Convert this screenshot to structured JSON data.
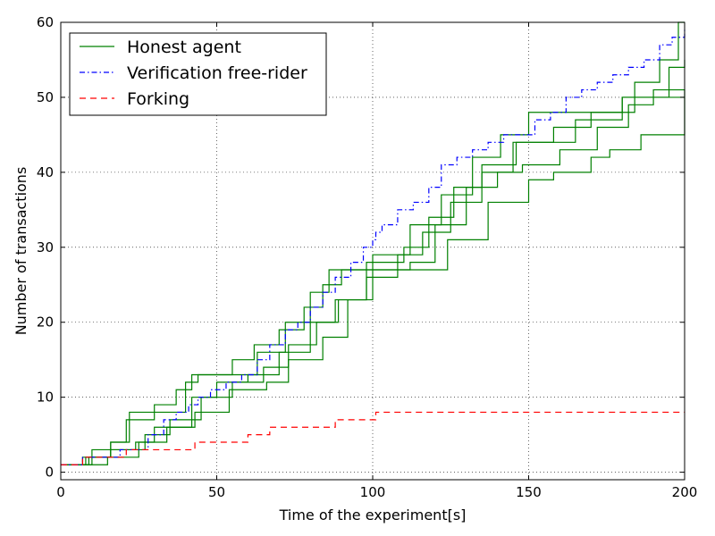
{
  "chart_data": {
    "type": "line",
    "xlabel": "Time of the experiment[s]",
    "ylabel": "Number of transactions",
    "xlim": [
      0,
      200
    ],
    "ylim": [
      -1,
      60
    ],
    "xticks": [
      0,
      50,
      100,
      150,
      200
    ],
    "yticks": [
      0,
      10,
      20,
      30,
      40,
      50,
      60
    ],
    "grid": true,
    "legend_position": "top-left",
    "series": [
      {
        "name": "Honest agent",
        "color": "#008000",
        "style": "solid",
        "step_data": [
          {
            "x": [
              0,
              9,
              16,
              22,
              40,
              44,
              55,
              62,
              70,
              78,
              84,
              90,
              100,
              112,
              122,
              132,
              141,
              150,
              166,
              180,
              200
            ],
            "y": [
              1,
              2,
              4,
              8,
              12,
              13,
              15,
              17,
              19,
              22,
              25,
              27,
              29,
              33,
              37,
              42,
              45,
              48,
              48,
              50,
              50
            ]
          },
          {
            "x": [
              0,
              10,
              16,
              21,
              30,
              37,
              42,
              52,
              63,
              72,
              80,
              86,
              98,
              110,
              118,
              126,
              135,
              146,
              165,
              180,
              195,
              200
            ],
            "y": [
              1,
              3,
              4,
              7,
              9,
              11,
              13,
              13,
              16,
              20,
              24,
              27,
              28,
              30,
              34,
              38,
              41,
              44,
              47,
              50,
              54,
              55
            ]
          },
          {
            "x": [
              0,
              7,
              16,
              27,
              35,
              45,
              55,
              65,
              73,
              82,
              88,
              98,
              108,
              116,
              125,
              135,
              145,
              158,
              170,
              184,
              192,
              198,
              200
            ],
            "y": [
              1,
              2,
              3,
              5,
              7,
              10,
              12,
              14,
              17,
              20,
              23,
              26,
              29,
              32,
              36,
              40,
              44,
              46,
              48,
              52,
              55,
              60,
              60
            ]
          },
          {
            "x": [
              0,
              8,
              16,
              24,
              34,
              43,
              54,
              66,
              73,
              84,
              92,
              98,
              112,
              120,
              130,
              140,
              148,
              160,
              172,
              182,
              190,
              200
            ],
            "y": [
              1,
              2,
              3,
              4,
              6,
              8,
              11,
              12,
              15,
              18,
              23,
              27,
              28,
              33,
              38,
              40,
              41,
              43,
              46,
              49,
              51,
              50
            ]
          },
          {
            "x": [
              0,
              8,
              15,
              25,
              30,
              42,
              50,
              60,
              70,
              80,
              89,
              100,
              112,
              124,
              137,
              150,
              158,
              170,
              176,
              186,
              200
            ],
            "y": [
              1,
              1,
              2,
              4,
              6,
              10,
              12,
              13,
              16,
              20,
              23,
              27,
              27,
              31,
              36,
              39,
              40,
              42,
              43,
              45,
              50
            ]
          }
        ]
      },
      {
        "name": "Verification free-rider",
        "color": "#0000ff",
        "style": "dashdot",
        "x": [
          0,
          7,
          19,
          28,
          33,
          37,
          41,
          44,
          48,
          53,
          58,
          63,
          67,
          72,
          76,
          80,
          84,
          88,
          93,
          97,
          100,
          101,
          103,
          108,
          113,
          118,
          122,
          127,
          132,
          137,
          142,
          147,
          152,
          157,
          162,
          167,
          172,
          177,
          182,
          187,
          192,
          196,
          200
        ],
        "y": [
          1,
          2,
          3,
          5,
          7,
          8,
          9,
          10,
          11,
          12,
          13,
          15,
          17,
          19,
          20,
          22,
          24,
          26,
          28,
          30,
          31,
          32,
          33,
          35,
          36,
          38,
          41,
          42,
          43,
          44,
          45,
          45,
          47,
          48,
          50,
          51,
          52,
          53,
          54,
          55,
          57,
          58,
          59
        ]
      },
      {
        "name": "Forking",
        "color": "#ff0000",
        "style": "dashed",
        "x": [
          0,
          7,
          12,
          21,
          25,
          43,
          60,
          62,
          67,
          88,
          100,
          101,
          200
        ],
        "y": [
          1,
          2,
          2,
          3,
          3,
          4,
          5,
          5,
          6,
          7,
          7,
          8,
          8
        ]
      }
    ]
  }
}
